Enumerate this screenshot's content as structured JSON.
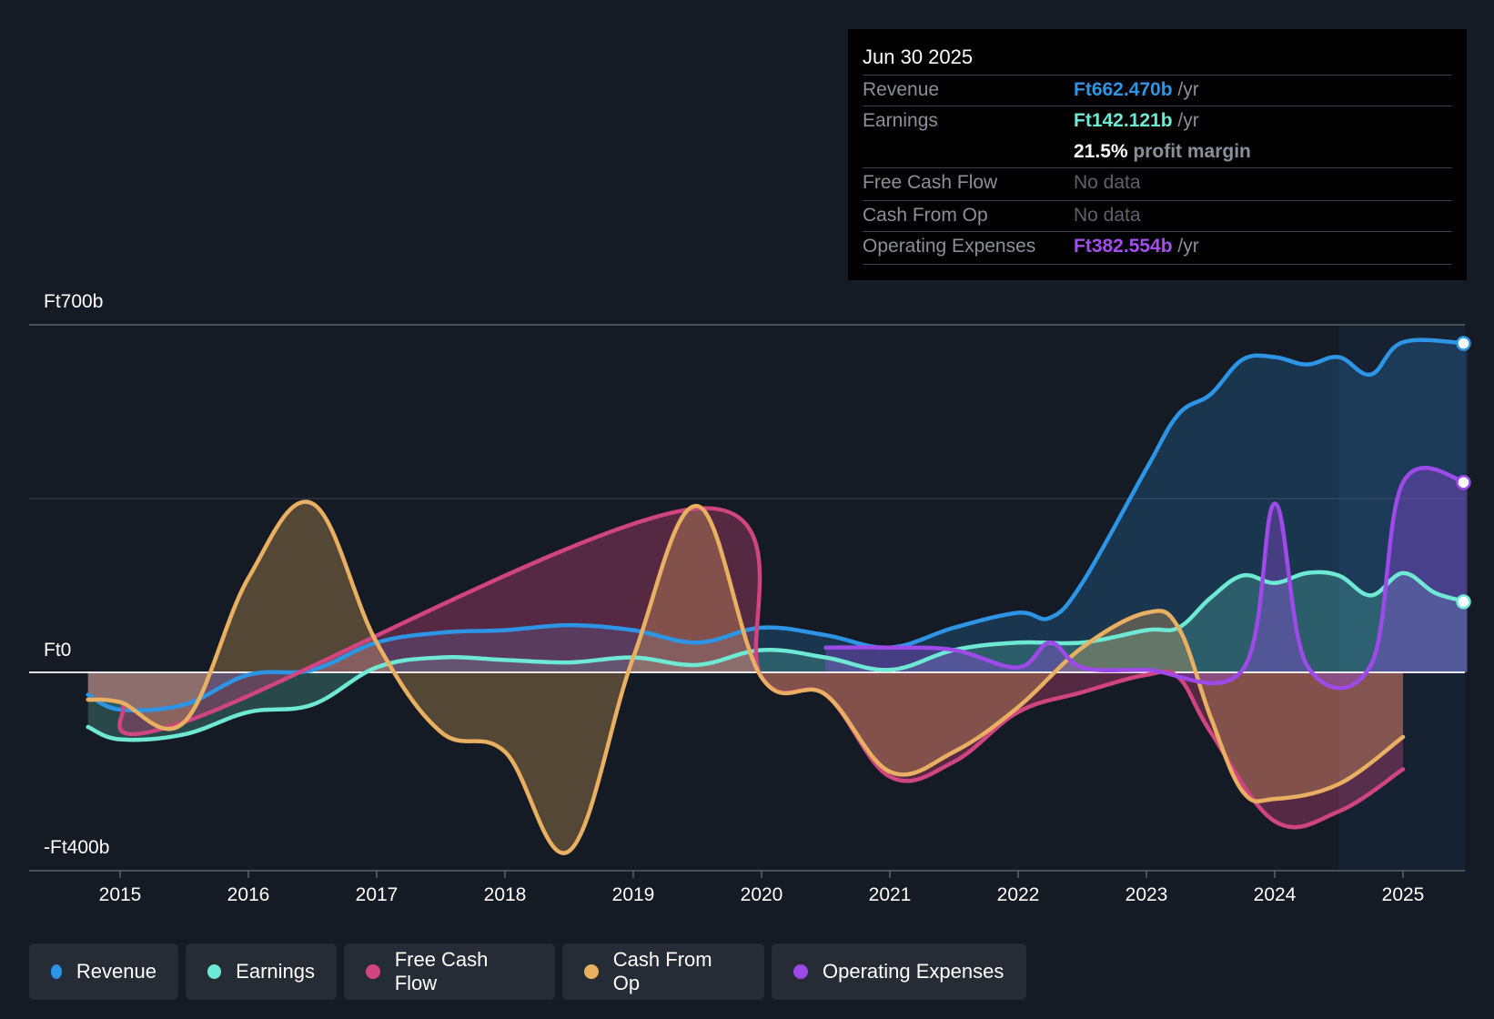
{
  "tooltip": {
    "date": "Jun 30 2025",
    "revenue_label": "Revenue",
    "revenue_value": "Ft662.470b",
    "per_year": "/yr",
    "earnings_label": "Earnings",
    "earnings_value": "Ft142.121b",
    "margin_value": "21.5%",
    "margin_label": "profit margin",
    "fcf_label": "Free Cash Flow",
    "fcf_value": "No data",
    "cfo_label": "Cash From Op",
    "cfo_value": "No data",
    "opex_label": "Operating Expenses",
    "opex_value": "Ft382.554b"
  },
  "legend": {
    "revenue": "Revenue",
    "earnings": "Earnings",
    "fcf": "Free Cash Flow",
    "cfo": "Cash From Op",
    "opex": "Operating Expenses"
  },
  "colors": {
    "revenue": "#2d95e5",
    "earnings": "#6ee9d3",
    "fcf": "#d0457f",
    "cfo": "#e8b060",
    "opex": "#9d4ae8",
    "zero_line": "#ffffff",
    "grid": "#3a414c"
  },
  "chart_data": {
    "type": "line",
    "title": "",
    "y_tick_labels": [
      "Ft700b",
      "Ft0",
      "-Ft400b"
    ],
    "ylim": [
      -400,
      700
    ],
    "xlim": [
      2014.0,
      2025.5
    ],
    "x_ticks": [
      2015,
      2016,
      2017,
      2018,
      2019,
      2020,
      2021,
      2022,
      2023,
      2024,
      2025
    ],
    "forecast_start": 2024.5,
    "series": [
      {
        "name": "Revenue",
        "key": "revenue",
        "points": [
          [
            2014.75,
            -45
          ],
          [
            2015.0,
            -75
          ],
          [
            2015.5,
            -65
          ],
          [
            2016.0,
            -5
          ],
          [
            2016.5,
            5
          ],
          [
            2017.0,
            60
          ],
          [
            2017.5,
            80
          ],
          [
            2018.0,
            85
          ],
          [
            2018.5,
            95
          ],
          [
            2019.0,
            85
          ],
          [
            2019.5,
            60
          ],
          [
            2020.0,
            90
          ],
          [
            2020.5,
            75
          ],
          [
            2021.0,
            50
          ],
          [
            2021.5,
            90
          ],
          [
            2022.0,
            120
          ],
          [
            2022.25,
            110
          ],
          [
            2022.5,
            180
          ],
          [
            2023.0,
            410
          ],
          [
            2023.25,
            520
          ],
          [
            2023.5,
            560
          ],
          [
            2023.75,
            630
          ],
          [
            2024.0,
            635
          ],
          [
            2024.25,
            620
          ],
          [
            2024.5,
            635
          ],
          [
            2024.75,
            600
          ],
          [
            2025.0,
            665
          ],
          [
            2025.5,
            662.47
          ]
        ]
      },
      {
        "name": "Earnings",
        "key": "earnings",
        "points": [
          [
            2014.75,
            -110
          ],
          [
            2015.0,
            -135
          ],
          [
            2015.5,
            -125
          ],
          [
            2016.0,
            -80
          ],
          [
            2016.5,
            -65
          ],
          [
            2017.0,
            10
          ],
          [
            2017.5,
            30
          ],
          [
            2018.0,
            25
          ],
          [
            2018.5,
            20
          ],
          [
            2019.0,
            30
          ],
          [
            2019.5,
            15
          ],
          [
            2020.0,
            45
          ],
          [
            2020.5,
            30
          ],
          [
            2021.0,
            5
          ],
          [
            2021.5,
            45
          ],
          [
            2022.0,
            60
          ],
          [
            2022.5,
            60
          ],
          [
            2023.0,
            85
          ],
          [
            2023.25,
            90
          ],
          [
            2023.5,
            150
          ],
          [
            2023.75,
            195
          ],
          [
            2024.0,
            180
          ],
          [
            2024.25,
            200
          ],
          [
            2024.5,
            195
          ],
          [
            2024.75,
            155
          ],
          [
            2025.0,
            200
          ],
          [
            2025.25,
            160
          ],
          [
            2025.5,
            142.121
          ]
        ]
      },
      {
        "name": "Free Cash Flow",
        "key": "fcf",
        "points": [
          [
            2014.75,
            -55
          ],
          [
            2015.0,
            -60
          ],
          [
            2015.5,
            -100
          ],
          [
            2019.5,
            330
          ],
          [
            2020.0,
            -10
          ],
          [
            2020.5,
            -45
          ],
          [
            2021.0,
            -210
          ],
          [
            2021.5,
            -180
          ],
          [
            2022.0,
            -80
          ],
          [
            2022.5,
            -40
          ],
          [
            2023.0,
            -5
          ],
          [
            2023.25,
            -10
          ],
          [
            2023.5,
            -120
          ],
          [
            2024.0,
            -300
          ],
          [
            2024.5,
            -280
          ],
          [
            2025.0,
            -195
          ]
        ]
      },
      {
        "name": "Cash From Op",
        "key": "cfo",
        "points": [
          [
            2014.75,
            -55
          ],
          [
            2015.0,
            -60
          ],
          [
            2015.5,
            -100
          ],
          [
            2016.0,
            190
          ],
          [
            2016.5,
            340
          ],
          [
            2017.0,
            60
          ],
          [
            2017.5,
            -120
          ],
          [
            2018.0,
            -160
          ],
          [
            2018.5,
            -360
          ],
          [
            2019.0,
            30
          ],
          [
            2019.5,
            335
          ],
          [
            2020.0,
            -10
          ],
          [
            2020.5,
            -45
          ],
          [
            2021.0,
            -200
          ],
          [
            2021.5,
            -160
          ],
          [
            2022.0,
            -70
          ],
          [
            2022.5,
            50
          ],
          [
            2023.0,
            120
          ],
          [
            2023.25,
            90
          ],
          [
            2023.5,
            -90
          ],
          [
            2023.75,
            -240
          ],
          [
            2024.0,
            -255
          ],
          [
            2024.5,
            -225
          ],
          [
            2025.0,
            -130
          ]
        ]
      },
      {
        "name": "Operating Expenses",
        "key": "opex",
        "points": [
          [
            2020.5,
            50
          ],
          [
            2021.0,
            50
          ],
          [
            2021.5,
            45
          ],
          [
            2022.0,
            10
          ],
          [
            2022.25,
            60
          ],
          [
            2022.5,
            10
          ],
          [
            2023.0,
            5
          ],
          [
            2023.75,
            5
          ],
          [
            2024.0,
            340
          ],
          [
            2024.25,
            15
          ],
          [
            2024.75,
            15
          ],
          [
            2025.0,
            382.554
          ],
          [
            2025.5,
            382.554
          ]
        ]
      }
    ]
  }
}
